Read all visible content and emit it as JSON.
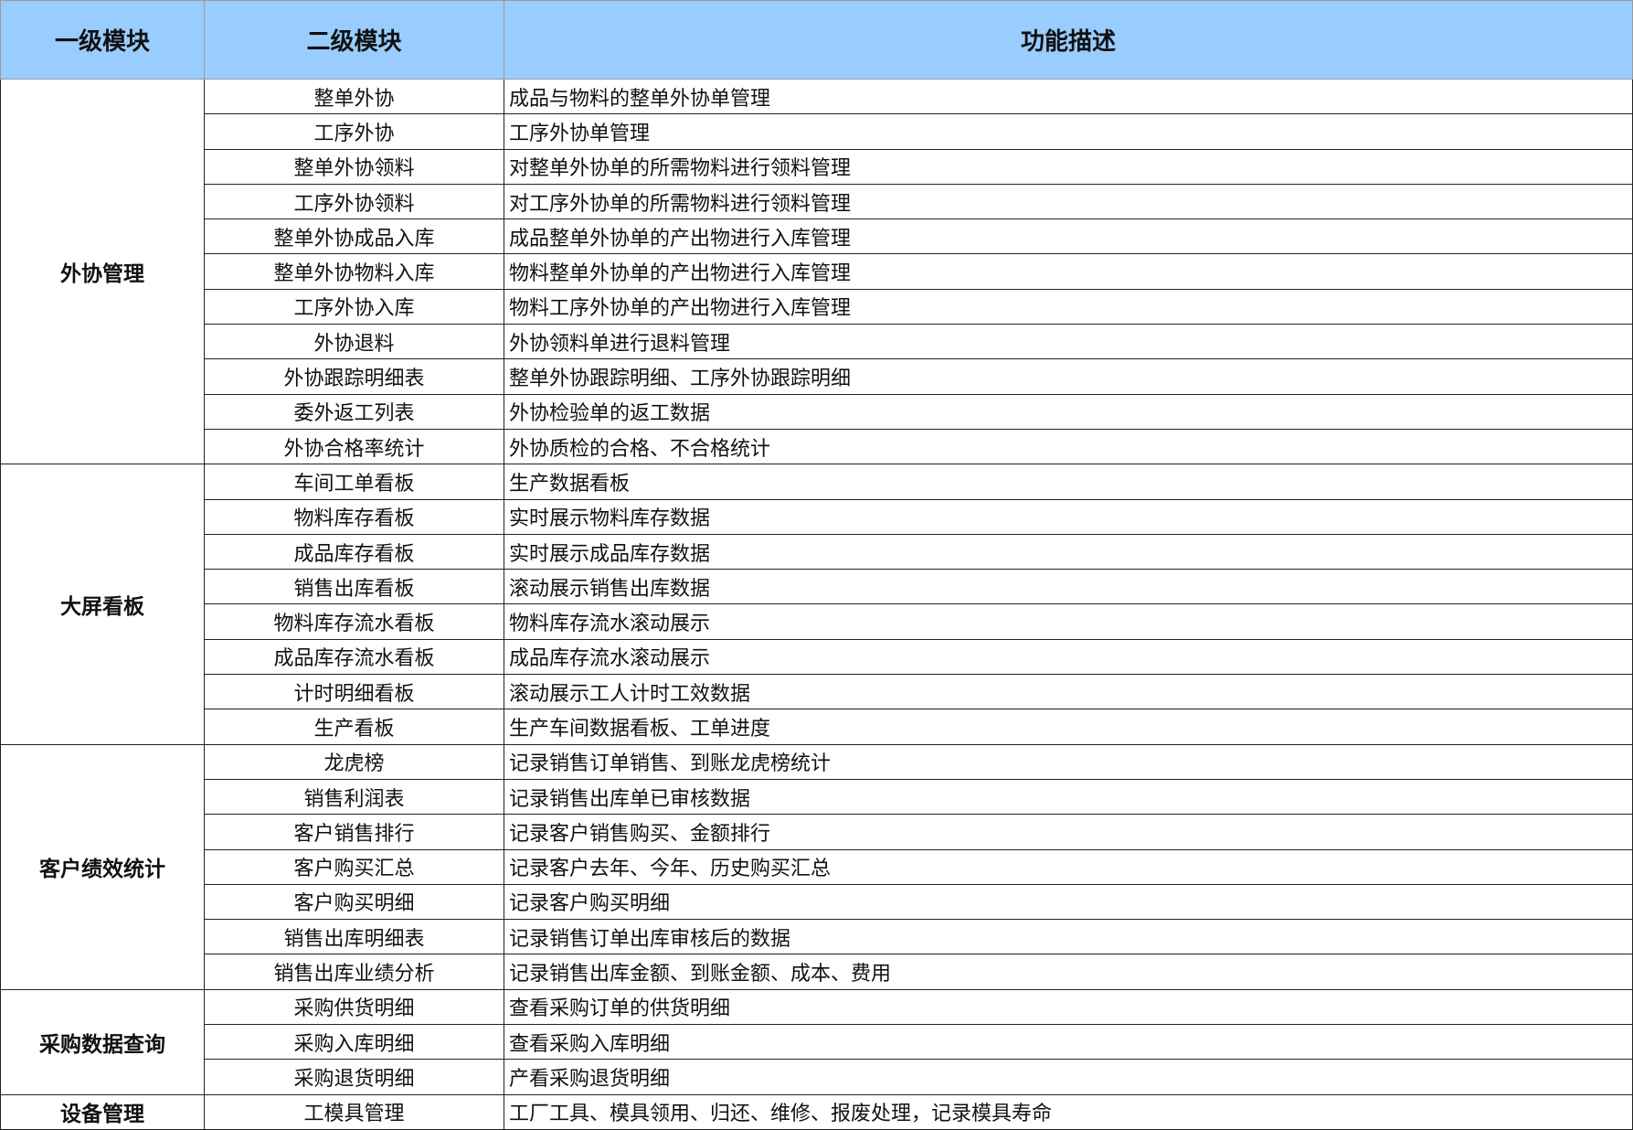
{
  "headers": {
    "level1": "一级模块",
    "level2": "二级模块",
    "desc": "功能描述"
  },
  "colors": {
    "header_bg": "#99ccff"
  },
  "groups": [
    {
      "name": "外协管理",
      "rows": [
        [
          "整单外协",
          "成品与物料的整单外协单管理"
        ],
        [
          "工序外协",
          "工序外协单管理"
        ],
        [
          "整单外协领料",
          "对整单外协单的所需物料进行领料管理"
        ],
        [
          "工序外协领料",
          "对工序外协单的所需物料进行领料管理"
        ],
        [
          "整单外协成品入库",
          "成品整单外协单的产出物进行入库管理"
        ],
        [
          "整单外协物料入库",
          "物料整单外协单的产出物进行入库管理"
        ],
        [
          "工序外协入库",
          "物料工序外协单的产出物进行入库管理"
        ],
        [
          "外协退料",
          "外协领料单进行退料管理"
        ],
        [
          "外协跟踪明细表",
          "整单外协跟踪明细、工序外协跟踪明细"
        ],
        [
          "委外返工列表",
          "外协检验单的返工数据"
        ],
        [
          "外协合格率统计",
          "外协质检的合格、不合格统计"
        ]
      ]
    },
    {
      "name": "大屏看板",
      "rows": [
        [
          "车间工单看板",
          "生产数据看板"
        ],
        [
          "物料库存看板",
          "实时展示物料库存数据"
        ],
        [
          "成品库存看板",
          "实时展示成品库存数据"
        ],
        [
          "销售出库看板",
          "滚动展示销售出库数据"
        ],
        [
          "物料库存流水看板",
          "物料库存流水滚动展示"
        ],
        [
          "成品库存流水看板",
          "成品库存流水滚动展示"
        ],
        [
          "计时明细看板",
          "滚动展示工人计时工效数据"
        ],
        [
          "生产看板",
          "生产车间数据看板、工单进度"
        ]
      ]
    },
    {
      "name": "客户绩效统计",
      "rows": [
        [
          "龙虎榜",
          "记录销售订单销售、到账龙虎榜统计"
        ],
        [
          "销售利润表",
          "记录销售出库单已审核数据"
        ],
        [
          "客户销售排行",
          "记录客户销售购买、金额排行"
        ],
        [
          "客户购买汇总",
          "记录客户去年、今年、历史购买汇总"
        ],
        [
          "客户购买明细",
          "记录客户购买明细"
        ],
        [
          "销售出库明细表",
          "记录销售订单出库审核后的数据"
        ],
        [
          "销售出库业绩分析",
          "记录销售出库金额、到账金额、成本、费用"
        ]
      ]
    },
    {
      "name": "采购数据查询",
      "rows": [
        [
          "采购供货明细",
          "查看采购订单的供货明细"
        ],
        [
          "采购入库明细",
          "查看采购入库明细"
        ],
        [
          "采购退货明细",
          "产看采购退货明细"
        ]
      ]
    },
    {
      "name": "设备管理",
      "rows": [
        [
          "工模具管理",
          "工厂工具、模具领用、归还、维修、报废处理，记录模具寿命"
        ]
      ]
    }
  ]
}
